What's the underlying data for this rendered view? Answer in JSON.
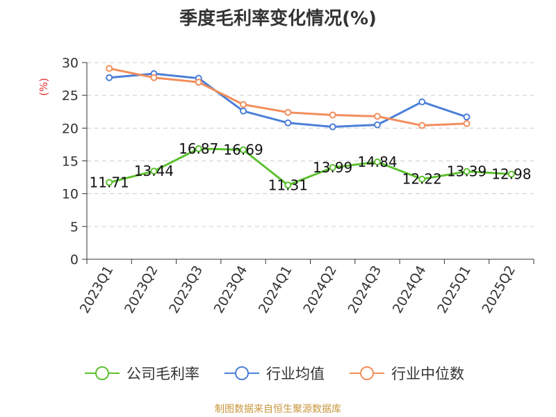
{
  "title": "季度毛利率变化情况(%)",
  "source": "制图数据来自恒生聚源数据库",
  "chart_data": {
    "type": "line",
    "title": "季度毛利率变化情况(%)",
    "ylabel": "(%)",
    "xlabel": "",
    "ylim": [
      0,
      30
    ],
    "yticks": [
      0,
      5,
      10,
      15,
      20,
      25,
      30
    ],
    "grid": true,
    "legend_position": "bottom",
    "categories": [
      "2023Q1",
      "2023Q2",
      "2023Q3",
      "2023Q4",
      "2024Q1",
      "2024Q2",
      "2024Q3",
      "2024Q4",
      "2025Q1",
      "2025Q2"
    ],
    "series": [
      {
        "name": "公司毛利率",
        "color": "#5cc131",
        "values": [
          11.71,
          13.44,
          16.87,
          16.69,
          11.31,
          13.99,
          14.84,
          12.22,
          13.39,
          12.98
        ],
        "labels": [
          "11.71",
          "13.44",
          "16.87",
          "16.69",
          "11.31",
          "13.99",
          "14.84",
          "12.22",
          "13.39",
          "12.98"
        ]
      },
      {
        "name": "行业均值",
        "color": "#4b7fd8",
        "values": [
          27.7,
          28.3,
          27.6,
          22.6,
          20.8,
          20.2,
          20.5,
          24.0,
          21.7,
          null
        ]
      },
      {
        "name": "行业中位数",
        "color": "#f28e5c",
        "values": [
          29.1,
          27.7,
          27.0,
          23.6,
          22.4,
          22.0,
          21.8,
          20.4,
          20.7,
          null
        ]
      }
    ]
  }
}
